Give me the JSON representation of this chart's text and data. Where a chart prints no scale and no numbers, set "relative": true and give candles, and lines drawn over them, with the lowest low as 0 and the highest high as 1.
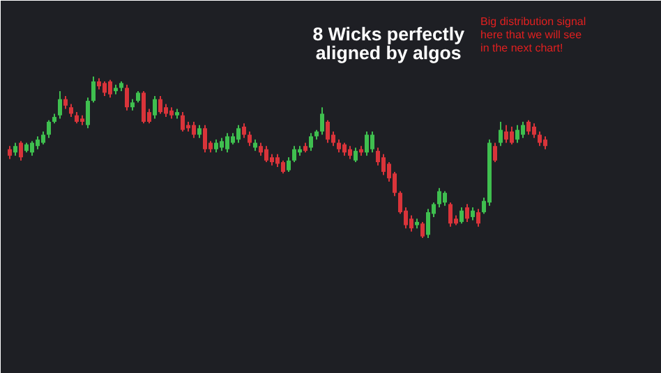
{
  "chart_data": {
    "type": "candlestick",
    "relative": true,
    "annotations": [
      "8 Wicks perfectly aligned by algos",
      "Big distribution signal here that we will see in the next chart!"
    ],
    "categories": [
      null,
      null,
      null,
      null,
      null,
      null,
      null,
      null,
      null,
      null,
      null,
      null,
      null,
      null,
      null,
      null,
      null,
      null,
      null,
      null,
      null,
      null,
      null,
      null,
      null,
      null,
      null,
      null,
      null,
      null,
      null,
      null,
      null,
      null,
      null,
      null,
      null,
      null,
      null,
      null,
      null,
      null,
      null,
      null,
      null,
      null,
      null,
      null,
      null,
      null,
      null,
      null,
      null,
      null,
      null,
      null,
      null,
      null,
      null,
      null,
      null,
      null,
      null,
      null,
      null,
      null,
      null,
      null,
      null,
      null,
      null,
      null,
      null,
      null,
      null,
      null,
      null,
      null,
      null,
      null,
      null,
      null,
      null,
      null,
      null,
      null,
      null,
      null,
      null,
      null,
      null,
      null,
      null,
      null,
      null,
      null,
      null
    ],
    "ohlc": [
      [
        0.55,
        0.57,
        0.49,
        0.51
      ],
      [
        0.53,
        0.59,
        0.51,
        0.57
      ],
      [
        0.59,
        0.6,
        0.48,
        0.5
      ],
      [
        0.54,
        0.59,
        0.53,
        0.58
      ],
      [
        0.53,
        0.6,
        0.51,
        0.59
      ],
      [
        0.57,
        0.63,
        0.55,
        0.61
      ],
      [
        0.59,
        0.66,
        0.58,
        0.64
      ],
      [
        0.64,
        0.73,
        0.62,
        0.72
      ],
      [
        0.72,
        0.77,
        0.71,
        0.75
      ],
      [
        0.76,
        0.91,
        0.74,
        0.86
      ],
      [
        0.86,
        0.88,
        0.8,
        0.82
      ],
      [
        0.81,
        0.83,
        0.75,
        0.77
      ],
      [
        0.76,
        0.78,
        0.71,
        0.72
      ],
      [
        0.74,
        0.76,
        0.7,
        0.72
      ],
      [
        0.7,
        0.87,
        0.68,
        0.85
      ],
      [
        0.85,
        1.0,
        0.84,
        0.97
      ],
      [
        0.97,
        0.99,
        0.92,
        0.94
      ],
      [
        0.96,
        0.97,
        0.88,
        0.9
      ],
      [
        0.97,
        0.98,
        0.87,
        0.89
      ],
      [
        0.91,
        0.95,
        0.89,
        0.93
      ],
      [
        0.93,
        0.97,
        0.91,
        0.96
      ],
      [
        0.93,
        0.95,
        0.79,
        0.81
      ],
      [
        0.81,
        0.86,
        0.79,
        0.84
      ],
      [
        0.85,
        0.91,
        0.84,
        0.9
      ],
      [
        0.9,
        0.91,
        0.71,
        0.72
      ],
      [
        0.78,
        0.8,
        0.71,
        0.72
      ],
      [
        0.76,
        0.88,
        0.74,
        0.86
      ],
      [
        0.86,
        0.88,
        0.77,
        0.78
      ],
      [
        0.81,
        0.83,
        0.75,
        0.77
      ],
      [
        0.79,
        0.81,
        0.74,
        0.76
      ],
      [
        0.76,
        0.8,
        0.74,
        0.78
      ],
      [
        0.76,
        0.78,
        0.66,
        0.67
      ],
      [
        0.7,
        0.72,
        0.66,
        0.68
      ],
      [
        0.7,
        0.72,
        0.62,
        0.64
      ],
      [
        0.64,
        0.7,
        0.62,
        0.68
      ],
      [
        0.68,
        0.7,
        0.53,
        0.55
      ],
      [
        0.59,
        0.6,
        0.53,
        0.55
      ],
      [
        0.55,
        0.61,
        0.53,
        0.59
      ],
      [
        0.56,
        0.62,
        0.54,
        0.6
      ],
      [
        0.55,
        0.65,
        0.53,
        0.63
      ],
      [
        0.59,
        0.65,
        0.58,
        0.63
      ],
      [
        0.61,
        0.7,
        0.59,
        0.68
      ],
      [
        0.69,
        0.71,
        0.62,
        0.64
      ],
      [
        0.64,
        0.66,
        0.57,
        0.59
      ],
      [
        0.56,
        0.61,
        0.54,
        0.59
      ],
      [
        0.57,
        0.59,
        0.51,
        0.53
      ],
      [
        0.55,
        0.57,
        0.47,
        0.48
      ],
      [
        0.5,
        0.52,
        0.45,
        0.47
      ],
      [
        0.5,
        0.52,
        0.44,
        0.46
      ],
      [
        0.47,
        0.48,
        0.4,
        0.41
      ],
      [
        0.42,
        0.5,
        0.41,
        0.48
      ],
      [
        0.48,
        0.57,
        0.47,
        0.55
      ],
      [
        0.53,
        0.57,
        0.51,
        0.55
      ],
      [
        0.57,
        0.59,
        0.53,
        0.54
      ],
      [
        0.56,
        0.65,
        0.54,
        0.63
      ],
      [
        0.63,
        0.67,
        0.61,
        0.66
      ],
      [
        0.66,
        0.81,
        0.64,
        0.77
      ],
      [
        0.72,
        0.73,
        0.59,
        0.61
      ],
      [
        0.64,
        0.66,
        0.57,
        0.59
      ],
      [
        0.59,
        0.61,
        0.53,
        0.55
      ],
      [
        0.58,
        0.59,
        0.51,
        0.53
      ],
      [
        0.55,
        0.57,
        0.49,
        0.51
      ],
      [
        0.48,
        0.56,
        0.47,
        0.54
      ],
      [
        0.55,
        0.57,
        0.51,
        0.53
      ],
      [
        0.53,
        0.66,
        0.51,
        0.64
      ],
      [
        0.55,
        0.66,
        0.53,
        0.64
      ],
      [
        0.54,
        0.56,
        0.45,
        0.47
      ],
      [
        0.5,
        0.52,
        0.39,
        0.41
      ],
      [
        0.46,
        0.47,
        0.35,
        0.37
      ],
      [
        0.4,
        0.41,
        0.26,
        0.28
      ],
      [
        0.28,
        0.29,
        0.15,
        0.16
      ],
      [
        0.17,
        0.19,
        0.06,
        0.08
      ],
      [
        0.12,
        0.14,
        0.04,
        0.06
      ],
      [
        0.08,
        0.12,
        0.06,
        0.1
      ],
      [
        0.09,
        0.1,
        0.0,
        0.01
      ],
      [
        0.02,
        0.18,
        0.0,
        0.16
      ],
      [
        0.15,
        0.22,
        0.13,
        0.21
      ],
      [
        0.21,
        0.31,
        0.19,
        0.29
      ],
      [
        0.22,
        0.29,
        0.2,
        0.28
      ],
      [
        0.21,
        0.22,
        0.07,
        0.09
      ],
      [
        0.12,
        0.14,
        0.08,
        0.09
      ],
      [
        0.1,
        0.19,
        0.09,
        0.17
      ],
      [
        0.19,
        0.21,
        0.1,
        0.12
      ],
      [
        0.13,
        0.19,
        0.11,
        0.17
      ],
      [
        0.16,
        0.18,
        0.07,
        0.09
      ],
      [
        0.16,
        0.25,
        0.15,
        0.23
      ],
      [
        0.22,
        0.61,
        0.2,
        0.59
      ],
      [
        0.57,
        0.59,
        0.47,
        0.48
      ],
      [
        0.59,
        0.72,
        0.57,
        0.67
      ],
      [
        0.66,
        0.7,
        0.59,
        0.61
      ],
      [
        0.66,
        0.69,
        0.58,
        0.59
      ],
      [
        0.61,
        0.7,
        0.59,
        0.67
      ],
      [
        0.64,
        0.72,
        0.62,
        0.7
      ],
      [
        0.72,
        0.73,
        0.64,
        0.66
      ],
      [
        0.69,
        0.71,
        0.62,
        0.64
      ],
      [
        0.64,
        0.66,
        0.57,
        0.59
      ],
      [
        0.61,
        0.63,
        0.55,
        0.57
      ]
    ]
  }
}
